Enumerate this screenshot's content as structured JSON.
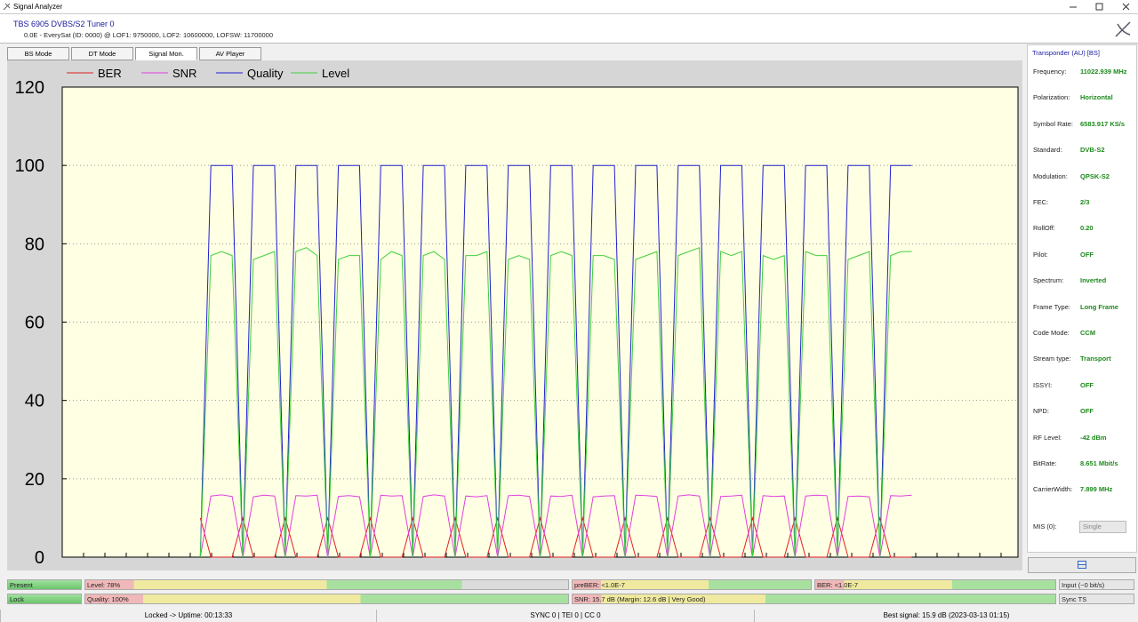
{
  "window": {
    "title": "Signal Analyzer"
  },
  "header": {
    "title": "TBS 6905 DVBS/S2 Tuner 0",
    "subtitle": "0.0E - EverySat (ID: 0000) @ LOF1: 9750000, LOF2: 10600000, LOFSW: 11700000"
  },
  "tabs": [
    "BS Mode",
    "DT Mode",
    "Signal Mon.",
    "AV Player"
  ],
  "chart_data": {
    "type": "line",
    "legend": "top",
    "grid": true,
    "ylim": [
      0,
      120
    ],
    "yticks": [
      0,
      20,
      40,
      60,
      80,
      100,
      120
    ],
    "series": [
      {
        "name": "BER",
        "color": "#e02020",
        "values": [
          null,
          null,
          null,
          null,
          null,
          null,
          null,
          null,
          null,
          null,
          null,
          null,
          null,
          10,
          0,
          0,
          0,
          10,
          0,
          0,
          0,
          10,
          0,
          0,
          0,
          10,
          0,
          0,
          0,
          10,
          0,
          0,
          0,
          10,
          0,
          0,
          0,
          10,
          0,
          0,
          0,
          10,
          0,
          0,
          0,
          10,
          0,
          0,
          0,
          10,
          0,
          0,
          0,
          10,
          0,
          0,
          0,
          10,
          0,
          0,
          0,
          10,
          0,
          0,
          0,
          10,
          0,
          0,
          0,
          10,
          0,
          0,
          0,
          10,
          0,
          0,
          0,
          10,
          0,
          0,
          0,
          null,
          null,
          null,
          null,
          null,
          null,
          null,
          null,
          null,
          null
        ]
      },
      {
        "name": "SNR",
        "color": "#e040e0",
        "values": [
          null,
          null,
          null,
          null,
          null,
          null,
          null,
          null,
          null,
          null,
          null,
          null,
          null,
          0,
          15.6,
          15.9,
          15.5,
          0,
          15.4,
          15.8,
          15.6,
          0,
          15.7,
          15.6,
          15.8,
          0,
          15.5,
          15.7,
          15.4,
          0,
          15.8,
          15.6,
          15.7,
          0,
          15.5,
          15.9,
          15.6,
          0,
          15.6,
          15.4,
          15.7,
          0,
          15.7,
          15.8,
          15.5,
          0,
          15.6,
          15.5,
          15.8,
          0,
          15.4,
          15.6,
          15.7,
          0,
          15.8,
          15.7,
          15.5,
          0,
          15.6,
          15.9,
          15.6,
          0,
          15.5,
          15.6,
          15.8,
          0,
          15.7,
          15.5,
          15.6,
          0,
          15.6,
          15.8,
          15.7,
          0,
          15.5,
          15.6,
          15.4,
          0,
          15.7,
          15.6,
          15.8,
          null,
          null,
          null,
          null,
          null,
          null,
          null,
          null,
          null,
          null
        ]
      },
      {
        "name": "Quality",
        "color": "#2020d0",
        "values": [
          null,
          null,
          null,
          null,
          null,
          null,
          null,
          null,
          null,
          null,
          null,
          null,
          null,
          0,
          100,
          100,
          100,
          0,
          100,
          100,
          100,
          0,
          100,
          100,
          100,
          0,
          100,
          100,
          100,
          0,
          100,
          100,
          100,
          0,
          100,
          100,
          100,
          0,
          100,
          100,
          100,
          0,
          100,
          100,
          100,
          0,
          100,
          100,
          100,
          0,
          100,
          100,
          100,
          0,
          100,
          100,
          100,
          0,
          100,
          100,
          100,
          0,
          100,
          100,
          100,
          0,
          100,
          100,
          100,
          0,
          100,
          100,
          100,
          0,
          100,
          100,
          100,
          0,
          100,
          100,
          100,
          null,
          null,
          null,
          null,
          null,
          null,
          null,
          null,
          null,
          null
        ]
      },
      {
        "name": "Level",
        "color": "#40d040",
        "values": [
          null,
          null,
          null,
          null,
          null,
          null,
          null,
          null,
          null,
          null,
          null,
          null,
          null,
          0,
          77,
          78,
          77,
          0,
          76,
          77,
          78,
          0,
          78,
          79,
          77,
          0,
          76,
          77,
          77,
          0,
          76,
          78,
          77,
          0,
          77,
          78,
          76,
          0,
          77,
          77,
          78,
          0,
          76,
          77,
          76,
          0,
          77,
          78,
          77,
          0,
          77,
          77,
          76,
          0,
          76,
          77,
          78,
          0,
          77,
          78,
          79,
          0,
          78,
          77,
          78,
          0,
          77,
          76,
          77,
          0,
          78,
          77,
          77,
          0,
          76,
          77,
          78,
          0,
          77,
          78,
          78,
          null,
          null,
          null,
          null,
          null,
          null,
          null,
          null,
          null,
          null
        ]
      }
    ]
  },
  "panel": {
    "title": "Transponder (AU) [BS]",
    "fields": [
      {
        "label": "Frequency:",
        "value": "11022.939 MHz"
      },
      {
        "label": "Polarization:",
        "value": "Horizontal"
      },
      {
        "label": "Symbol Rate:",
        "value": "6583.917 KS/s"
      },
      {
        "label": "Standard:",
        "value": "DVB-S2"
      },
      {
        "label": "Modulation:",
        "value": "QPSK-S2"
      },
      {
        "label": "FEC:",
        "value": "2/3"
      },
      {
        "label": "RollOff:",
        "value": "0.20"
      },
      {
        "label": "Pilot:",
        "value": "OFF"
      },
      {
        "label": "Spectrum:",
        "value": "Inverted"
      },
      {
        "label": "Frame Type:",
        "value": "Long Frame"
      },
      {
        "label": "Code Mode:",
        "value": "CCM"
      },
      {
        "label": "Stream type:",
        "value": "Transport"
      },
      {
        "label": "ISSYI:",
        "value": "OFF"
      },
      {
        "label": "NPD:",
        "value": "OFF"
      },
      {
        "label": "RF Level:",
        "value": "-42 dBm"
      },
      {
        "label": "BitRate:",
        "value": "8.651 Mbit/s"
      },
      {
        "label": "CarrierWidth:",
        "value": "7.899 MHz"
      }
    ],
    "mis": {
      "label": "MIS (0):",
      "value": "Single"
    }
  },
  "status": {
    "rows": [
      [
        "Present",
        "Level: 78%",
        "preBER: <1.0E-7",
        "BER: <1.0E-7",
        "Input (~0 bit/s)"
      ],
      [
        "Lock",
        "Quality: 100%",
        "SNR: 15.7 dB (Margin: 12.6 dB | Very Good)",
        "Sync TS"
      ]
    ],
    "footer": [
      "Locked -> Uptime: 00:13:33",
      "SYNC 0 | TEI 0 | CC 0",
      "Best signal: 15.9 dB (2023-03-13 01:15)"
    ]
  }
}
